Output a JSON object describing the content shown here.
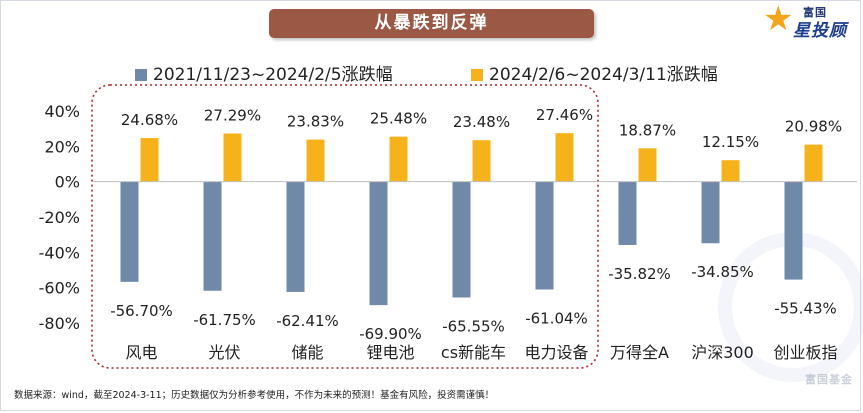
{
  "title": "从暴跌到反弹",
  "logo": {
    "top_text": "富国",
    "main_text": "星投顾"
  },
  "watermark": "富国基金",
  "footnote": "数据来源：wind，截至2024-3-11；历史数据仅为分析参考使用，不作为未来的预测！基金有风险，投资需谨慎！",
  "chart_data": {
    "type": "bar",
    "title": "从暴跌到反弹",
    "categories": [
      "风电",
      "光伏",
      "储能",
      "锂电池",
      "cs新能车",
      "电力设备",
      "万得全A",
      "沪深300",
      "创业板指"
    ],
    "series": [
      {
        "name": "2021/11/23~2024/2/5涨跌幅",
        "color": "#7189a9",
        "values": [
          -56.7,
          -61.75,
          -62.41,
          -69.9,
          -65.55,
          -61.04,
          -35.82,
          -34.85,
          -55.43
        ],
        "labels": [
          "-56.70%",
          "-61.75%",
          "-62.41%",
          "-69.90%",
          "-65.55%",
          "-61.04%",
          "-35.82%",
          "-34.85%",
          "-55.43%"
        ]
      },
      {
        "name": "2024/2/6~2024/3/11涨跌幅",
        "color": "#f6b21a",
        "values": [
          24.68,
          27.29,
          23.83,
          25.48,
          23.48,
          27.46,
          18.87,
          12.15,
          20.98
        ],
        "labels": [
          "24.68%",
          "27.29%",
          "23.83%",
          "25.48%",
          "23.48%",
          "27.46%",
          "18.87%",
          "12.15%",
          "20.98%"
        ]
      }
    ],
    "ylim": [
      -80,
      40
    ],
    "yticks": [
      40,
      20,
      0,
      -20,
      -40,
      -60,
      -80
    ],
    "ytick_labels": [
      "40%",
      "20%",
      "0%",
      "-20%",
      "-40%",
      "-60%",
      "-80%"
    ],
    "xlabel": "",
    "ylabel": "",
    "grid": false,
    "legend_position": "top",
    "highlight": {
      "style": "dotted-rounded-box",
      "color": "#b2262b",
      "categories": [
        "风电",
        "光伏",
        "储能",
        "锂电池",
        "cs新能车",
        "电力设备"
      ]
    }
  }
}
